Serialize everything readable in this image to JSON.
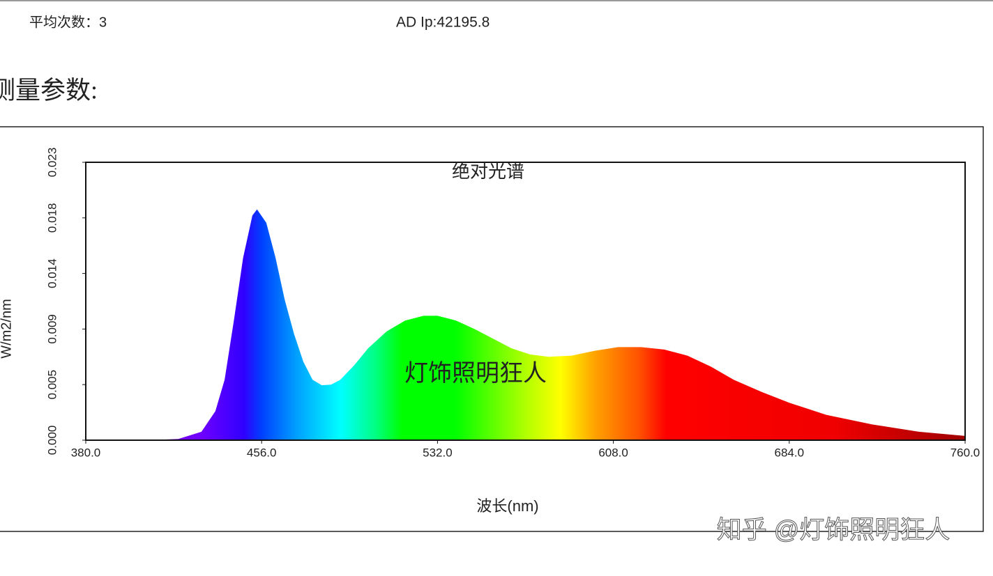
{
  "header": {
    "avg_label": "平均次数：3",
    "ad_label": "AD Ip:42195.8",
    "section": "测量参数:"
  },
  "chart_data": {
    "type": "area",
    "title": "绝对光谱",
    "xlabel": "波长(nm)",
    "ylabel": "W/m2/nm",
    "watermark": "灯饰照明狂人",
    "source": "知乎 @灯饰照明狂人",
    "x": [
      380,
      400,
      410,
      420,
      430,
      436,
      440,
      444,
      448,
      452,
      454,
      458,
      462,
      466,
      470,
      474,
      478,
      482,
      486,
      490,
      496,
      502,
      510,
      518,
      526,
      532,
      540,
      548,
      556,
      564,
      572,
      580,
      590,
      600,
      610,
      620,
      630,
      640,
      650,
      660,
      672,
      684,
      700,
      720,
      740,
      760
    ],
    "values": [
      0,
      0,
      2e-05,
      0.0001,
      0.0007,
      0.0024,
      0.005,
      0.0099,
      0.0151,
      0.0186,
      0.0191,
      0.018,
      0.0151,
      0.0116,
      0.0088,
      0.0065,
      0.005,
      0.00455,
      0.0046,
      0.005,
      0.0062,
      0.0076,
      0.009,
      0.0099,
      0.0103,
      0.0103,
      0.0099,
      0.0092,
      0.0084,
      0.0076,
      0.0071,
      0.0069,
      0.007,
      0.0074,
      0.0077,
      0.0077,
      0.0075,
      0.007,
      0.0061,
      0.005,
      0.004,
      0.0031,
      0.0021,
      0.0013,
      0.0007,
      0.00035
    ],
    "xlim": [
      380,
      760
    ],
    "xticks": [
      {
        "value": 380,
        "label": "380.0"
      },
      {
        "value": 456,
        "label": "456.0"
      },
      {
        "value": 532,
        "label": "532.0"
      },
      {
        "value": 608,
        "label": "608.0"
      },
      {
        "value": 684,
        "label": "684.0"
      },
      {
        "value": 760,
        "label": "760.0"
      }
    ],
    "ylim": [
      0,
      0.023
    ],
    "yticks": [
      {
        "value": 0,
        "label": "0.000"
      },
      {
        "value": 0.0046,
        "label": "0.005"
      },
      {
        "value": 0.0092,
        "label": "0.009"
      },
      {
        "value": 0.0138,
        "label": "0.014"
      },
      {
        "value": 0.0184,
        "label": "0.018"
      },
      {
        "value": 0.023,
        "label": "0.023"
      }
    ]
  }
}
